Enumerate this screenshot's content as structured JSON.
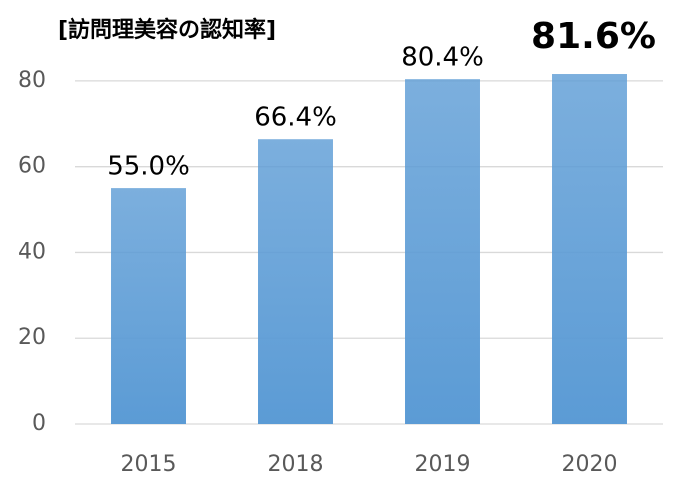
{
  "chart_data": {
    "type": "bar",
    "title": "[訪問理美容の認知率]",
    "categories": [
      "2015",
      "2018",
      "2019",
      "2020"
    ],
    "values": [
      55.0,
      66.4,
      80.4,
      81.6
    ],
    "value_labels": [
      "55.0%",
      "66.4%",
      "80.4%",
      "81.6%"
    ],
    "color": "#5b9bd5",
    "ylim": [
      0,
      90
    ],
    "yticks": [
      0,
      20,
      40,
      60,
      80
    ],
    "grid": true
  }
}
